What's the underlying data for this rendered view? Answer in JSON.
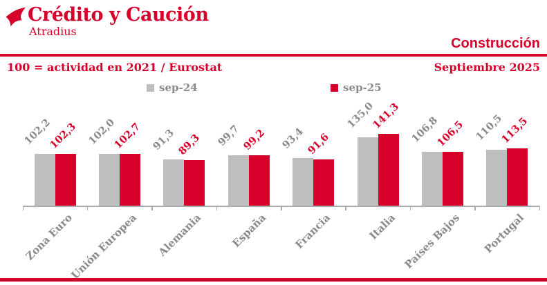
{
  "header": {
    "brand_title": "Crédito y Caución",
    "brand_subtitle": "Atradius",
    "section_title": "Construcción"
  },
  "subheader": {
    "note": "100 = actividad en 2021 / Eurostat",
    "date": "Septiembre 2025"
  },
  "colors": {
    "brand_red": "#D7002B",
    "bar_gray": "#BEBEBE",
    "text_gray": "#8A8A8A",
    "axis_gray": "#ABABAB"
  },
  "chart_data": {
    "type": "bar",
    "title": "Construcción",
    "subtitle": "100 = actividad en 2021 / Eurostat",
    "categories": [
      "Zona Euro",
      "Unión Europea",
      "Alemania",
      "España",
      "Francia",
      "Italia",
      "Países Bajos",
      "Portugal"
    ],
    "series": [
      {
        "name": "sep-24",
        "color": "#BEBEBE",
        "values": [
          102.2,
          102.0,
          91.3,
          99.7,
          93.4,
          135.0,
          106.8,
          110.5
        ]
      },
      {
        "name": "sep-25",
        "color": "#D7002B",
        "values": [
          102.3,
          102.7,
          89.3,
          99.2,
          91.6,
          141.3,
          106.5,
          113.5
        ]
      }
    ],
    "value_labels": [
      [
        "102,2",
        "102,0",
        "91,3",
        "99,7",
        "93,4",
        "135,0",
        "106,8",
        "110,5"
      ],
      [
        "102,3",
        "102,7",
        "89,3",
        "99,2",
        "91,6",
        "141,3",
        "106,5",
        "113,5"
      ]
    ],
    "ylim": [
      0,
      150
    ],
    "grid": false,
    "legend_position": "top"
  }
}
